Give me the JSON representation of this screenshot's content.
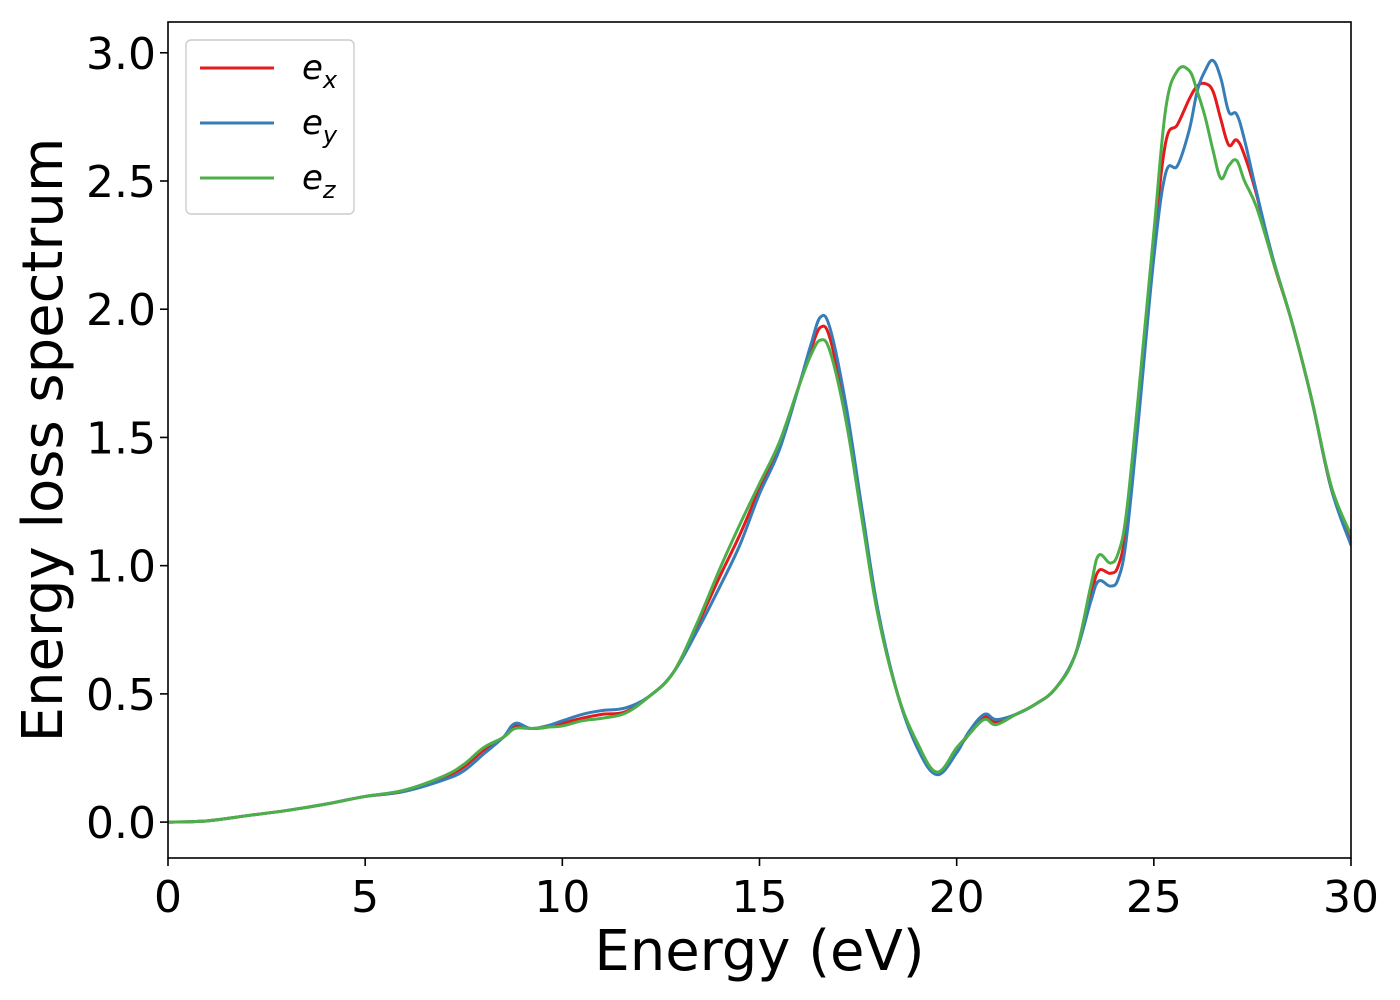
{
  "chart_data": {
    "type": "line",
    "title": "",
    "xlabel": "Energy (eV)",
    "ylabel": "Energy loss spectrum",
    "xlim": [
      0,
      30
    ],
    "ylim": [
      -0.14,
      3.12
    ],
    "xticks": [
      0,
      5,
      10,
      15,
      20,
      25,
      30
    ],
    "xtick_labels": [
      "0",
      "5",
      "10",
      "15",
      "20",
      "25",
      "30"
    ],
    "yticks": [
      0.0,
      0.5,
      1.0,
      1.5,
      2.0,
      2.5,
      3.0
    ],
    "ytick_labels": [
      "0.0",
      "0.5",
      "1.0",
      "1.5",
      "2.0",
      "2.5",
      "3.0"
    ],
    "grid": false,
    "legend_position": "top-left",
    "series": [
      {
        "name": "e",
        "sub": "x",
        "color": "#e41a1c",
        "x": [
          0,
          1,
          2,
          3,
          4,
          5,
          6,
          7,
          7.5,
          8,
          8.5,
          8.8,
          9.2,
          9.6,
          10,
          10.5,
          11,
          11.6,
          12.2,
          12.8,
          13.4,
          14,
          14.5,
          15,
          15.5,
          16,
          16.3,
          16.55,
          16.8,
          17.2,
          17.6,
          18,
          18.5,
          19,
          19.5,
          20,
          20.3,
          20.7,
          21,
          21.5,
          22,
          22.5,
          23,
          23.4,
          23.6,
          23.9,
          24.1,
          24.3,
          24.6,
          25,
          25.3,
          25.6,
          25.9,
          26.1,
          26.3,
          26.5,
          26.7,
          26.9,
          27.1,
          27.3,
          27.6,
          28,
          28.5,
          29,
          29.5,
          30
        ],
        "values": [
          0.0,
          0.005,
          0.025,
          0.045,
          0.07,
          0.1,
          0.12,
          0.175,
          0.215,
          0.28,
          0.33,
          0.375,
          0.365,
          0.37,
          0.385,
          0.405,
          0.42,
          0.43,
          0.49,
          0.58,
          0.76,
          0.96,
          1.12,
          1.3,
          1.47,
          1.7,
          1.84,
          1.93,
          1.88,
          1.58,
          1.2,
          0.82,
          0.5,
          0.3,
          0.19,
          0.28,
          0.34,
          0.41,
          0.39,
          0.42,
          0.46,
          0.52,
          0.65,
          0.88,
          0.98,
          0.97,
          1.0,
          1.15,
          1.6,
          2.25,
          2.65,
          2.72,
          2.82,
          2.87,
          2.88,
          2.85,
          2.74,
          2.64,
          2.66,
          2.6,
          2.45,
          2.2,
          1.95,
          1.65,
          1.3,
          1.1
        ]
      },
      {
        "name": "e",
        "sub": "y",
        "color": "#377eb8",
        "x": [
          0,
          1,
          2,
          3,
          4,
          5,
          6,
          7,
          7.5,
          8,
          8.5,
          8.8,
          9.2,
          9.6,
          10,
          10.5,
          11,
          11.6,
          12.2,
          12.8,
          13.4,
          14,
          14.5,
          15,
          15.5,
          16,
          16.3,
          16.55,
          16.8,
          17.2,
          17.6,
          18,
          18.5,
          19,
          19.5,
          20,
          20.3,
          20.7,
          21,
          21.5,
          22,
          22.5,
          23,
          23.4,
          23.6,
          23.9,
          24.1,
          24.3,
          24.6,
          25,
          25.3,
          25.6,
          25.9,
          26.1,
          26.3,
          26.5,
          26.7,
          26.9,
          27.1,
          27.3,
          27.6,
          28,
          28.5,
          29,
          29.5,
          30
        ],
        "values": [
          0.0,
          0.005,
          0.025,
          0.045,
          0.07,
          0.1,
          0.12,
          0.165,
          0.2,
          0.265,
          0.33,
          0.385,
          0.365,
          0.375,
          0.395,
          0.42,
          0.435,
          0.445,
          0.49,
          0.58,
          0.74,
          0.92,
          1.08,
          1.28,
          1.45,
          1.7,
          1.86,
          1.97,
          1.92,
          1.62,
          1.22,
          0.83,
          0.5,
          0.29,
          0.185,
          0.27,
          0.35,
          0.42,
          0.4,
          0.42,
          0.46,
          0.52,
          0.65,
          0.86,
          0.94,
          0.92,
          0.95,
          1.1,
          1.55,
          2.2,
          2.53,
          2.56,
          2.7,
          2.85,
          2.93,
          2.97,
          2.9,
          2.77,
          2.76,
          2.66,
          2.46,
          2.21,
          1.95,
          1.65,
          1.3,
          1.08
        ]
      },
      {
        "name": "e",
        "sub": "z",
        "color": "#4daf4a",
        "x": [
          0,
          1,
          2,
          3,
          4,
          5,
          6,
          7,
          7.5,
          8,
          8.5,
          8.8,
          9.2,
          9.6,
          10,
          10.5,
          11,
          11.6,
          12.2,
          12.8,
          13.4,
          14,
          14.5,
          15,
          15.5,
          16,
          16.3,
          16.55,
          16.8,
          17.2,
          17.6,
          18,
          18.5,
          19,
          19.5,
          20,
          20.3,
          20.7,
          21,
          21.5,
          22,
          22.5,
          23,
          23.4,
          23.6,
          23.9,
          24.1,
          24.3,
          24.6,
          25,
          25.3,
          25.6,
          25.9,
          26.1,
          26.3,
          26.5,
          26.7,
          26.9,
          27.1,
          27.3,
          27.6,
          28,
          28.5,
          29,
          29.5,
          30
        ],
        "values": [
          0.0,
          0.005,
          0.025,
          0.045,
          0.07,
          0.1,
          0.125,
          0.18,
          0.225,
          0.29,
          0.33,
          0.365,
          0.365,
          0.37,
          0.375,
          0.395,
          0.405,
          0.425,
          0.49,
          0.58,
          0.77,
          0.99,
          1.16,
          1.32,
          1.48,
          1.7,
          1.82,
          1.88,
          1.83,
          1.56,
          1.18,
          0.81,
          0.5,
          0.31,
          0.195,
          0.29,
          0.34,
          0.4,
          0.38,
          0.42,
          0.46,
          0.52,
          0.65,
          0.92,
          1.04,
          1.01,
          1.05,
          1.2,
          1.65,
          2.3,
          2.78,
          2.93,
          2.93,
          2.85,
          2.75,
          2.62,
          2.51,
          2.56,
          2.58,
          2.5,
          2.4,
          2.2,
          1.95,
          1.65,
          1.31,
          1.12
        ]
      }
    ]
  }
}
